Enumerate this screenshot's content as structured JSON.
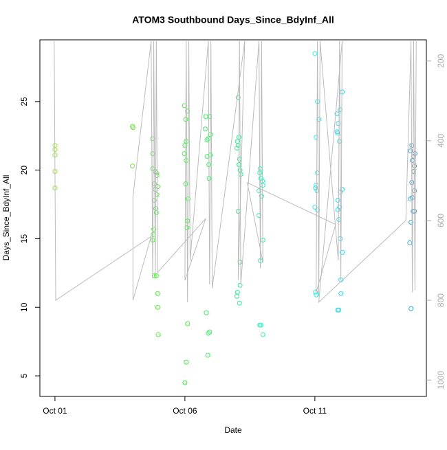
{
  "chart_data": {
    "type": "scatter",
    "title": "ATOM3 Southbound Days_Since_BdyInf_All",
    "x_label": "Date",
    "y_label": "Days_Since_BdyInf_All",
    "xlim": [
      -0.58,
      14.29
    ],
    "ylim": [
      3.5,
      29.5
    ],
    "y2lim": [
      1041,
      147
    ],
    "xticks": [
      {
        "value": 0,
        "label": "Oct 01"
      },
      {
        "value": 5,
        "label": "Oct 06"
      },
      {
        "value": 10,
        "label": "Oct 11"
      }
    ],
    "yticks": [
      5,
      10,
      15,
      20,
      25
    ],
    "y2ticks": [
      200,
      400,
      600,
      800,
      1000
    ],
    "series": [
      {
        "mode": "points",
        "color": "#99e63c",
        "x": [
          0,
          0,
          0,
          0,
          0
        ],
        "values": [
          21.8,
          21.5,
          21.1,
          19.9,
          18.7
        ]
      },
      {
        "mode": "points",
        "color": "#6ff036",
        "x": [
          2.98,
          3.0,
          2.98
        ],
        "values": [
          23.2,
          23.1,
          20.3
        ]
      },
      {
        "mode": "points",
        "color": "#44f82a",
        "x": [
          3.76,
          3.76,
          3.76,
          3.86,
          3.9,
          3.92,
          3.82,
          3.95,
          3.86,
          3.92,
          3.82,
          3.88,
          3.9,
          3.8,
          3.78,
          3.76,
          3.82,
          3.9,
          3.95,
          3.95,
          3.97
        ],
        "values": [
          22.3,
          21.2,
          20.1,
          19.9,
          19.8,
          19.6,
          19.0,
          18.8,
          18.6,
          18.2,
          17.8,
          17.2,
          16.9,
          15.7,
          15.3,
          14.9,
          12.3,
          12.3,
          11.0,
          10.0,
          8.0
        ]
      },
      {
        "mode": "points",
        "color": "#33f833",
        "x": [
          4.98,
          5.1,
          5.03,
          5.05,
          5.0,
          4.98,
          5.05,
          5.03,
          5.12,
          5.1,
          5.08,
          5.1,
          5.05,
          5.0
        ],
        "values": [
          24.7,
          24.3,
          23.7,
          22.1,
          21.8,
          21.2,
          20.7,
          19.0,
          17.9,
          16.3,
          15.8,
          8.8,
          6.0,
          4.5
        ]
      },
      {
        "mode": "points",
        "color": "#33f860",
        "x": [
          5.8,
          5.95,
          5.78,
          5.98,
          5.9,
          5.85,
          5.85,
          5.98,
          5.92,
          5.93,
          5.82,
          5.95,
          5.9,
          5.88
        ],
        "values": [
          23.9,
          23.9,
          23.0,
          22.6,
          22.3,
          22.2,
          21.0,
          21.1,
          20.4,
          19.4,
          9.6,
          8.2,
          8.1,
          6.5
        ]
      },
      {
        "mode": "points",
        "color": "#22f890",
        "x": [
          7.05,
          7.08,
          7.02,
          7.05,
          7.0,
          7.1,
          7.08,
          7.12,
          7.15,
          7.05,
          7.12,
          7.12,
          7.02,
          7.0,
          7.1
        ],
        "values": [
          25.3,
          22.4,
          22.1,
          21.8,
          21.6,
          20.8,
          20.4,
          20.0,
          19.7,
          17.0,
          13.3,
          11.6,
          11.1,
          10.8,
          10.3
        ]
      },
      {
        "mode": "points",
        "color": "#22f8b8",
        "x": [
          7.9,
          7.88,
          7.92,
          7.98,
          8.0,
          7.85,
          7.95,
          7.85,
          8.0,
          7.9,
          7.92,
          7.88,
          8.0
        ],
        "values": [
          20.1,
          19.8,
          19.4,
          19.2,
          18.9,
          18.5,
          18.1,
          16.7,
          14.9,
          13.4,
          8.7,
          8.7,
          8.0
        ]
      },
      {
        "mode": "points",
        "color": "#22f0f0",
        "x": [
          10.0,
          10.1,
          10.15,
          10.05,
          10.1,
          10.05,
          10.02,
          10.08,
          10.0,
          10.1,
          10.02,
          10.05
        ],
        "values": [
          28.5,
          25.0,
          23.7,
          22.4,
          19.8,
          18.9,
          18.7,
          18.5,
          17.3,
          17.1,
          11.1,
          10.9
        ]
      },
      {
        "mode": "points",
        "color": "#22e0f8",
        "x": [
          11.05,
          10.97,
          10.85,
          10.9,
          10.85,
          10.88,
          10.95,
          11.05,
          10.98,
          10.88,
          10.95,
          10.88,
          10.92,
          10.98,
          11.05,
          11.0,
          11.0,
          10.88,
          10.92
        ],
        "values": [
          25.7,
          24.4,
          24.1,
          23.4,
          22.8,
          22.7,
          22.1,
          18.6,
          18.4,
          17.8,
          17.3,
          17.1,
          16.4,
          15.0,
          14.0,
          12.0,
          11.0,
          9.8,
          9.8
        ]
      },
      {
        "mode": "points",
        "color": "#2aa8ea",
        "x": [
          13.73,
          13.68,
          13.85,
          13.8,
          13.75,
          13.83,
          13.8,
          13.73,
          13.83,
          13.75,
          13.68,
          13.78,
          13.83,
          13.7,
          13.65,
          13.7
        ],
        "values": [
          21.8,
          21.4,
          21.2,
          21.0,
          20.7,
          20.3,
          19.9,
          19.1,
          18.5,
          18.0,
          17.9,
          17.0,
          17.0,
          16.2,
          14.7,
          9.9
        ]
      },
      {
        "mode": "line",
        "axis": "y2",
        "color": "#bbbbbb",
        "x": [
          -0.03,
          0.03,
          3.7,
          3.0,
          3.0,
          3.7,
          3.76,
          3.8,
          3.86,
          3.9,
          3.95,
          5.8,
          5.0,
          5.05,
          5.1,
          5.15,
          5.2,
          5.9,
          5.95,
          6.0,
          6.05,
          7.3,
          7.05,
          7.1,
          7.15,
          7.85,
          7.9,
          7.95,
          8.0,
          7.4,
          10.8,
          10.05,
          10.1,
          10.15,
          10.2,
          10.9,
          10.95,
          11.0,
          11.05,
          10.15,
          13.5,
          13.7,
          13.75,
          13.8,
          13.85,
          13.9
        ],
        "values": [
          150,
          800,
          640,
          800,
          540,
          150,
          745,
          150,
          740,
          150,
          730,
          595,
          750,
          150,
          805,
          150,
          700,
          150,
          760,
          150,
          770,
          150,
          750,
          150,
          760,
          150,
          720,
          150,
          705,
          505,
          610,
          780,
          150,
          790,
          150,
          700,
          150,
          750,
          150,
          805,
          600,
          150,
          780,
          150,
          775,
          150
        ]
      }
    ]
  }
}
